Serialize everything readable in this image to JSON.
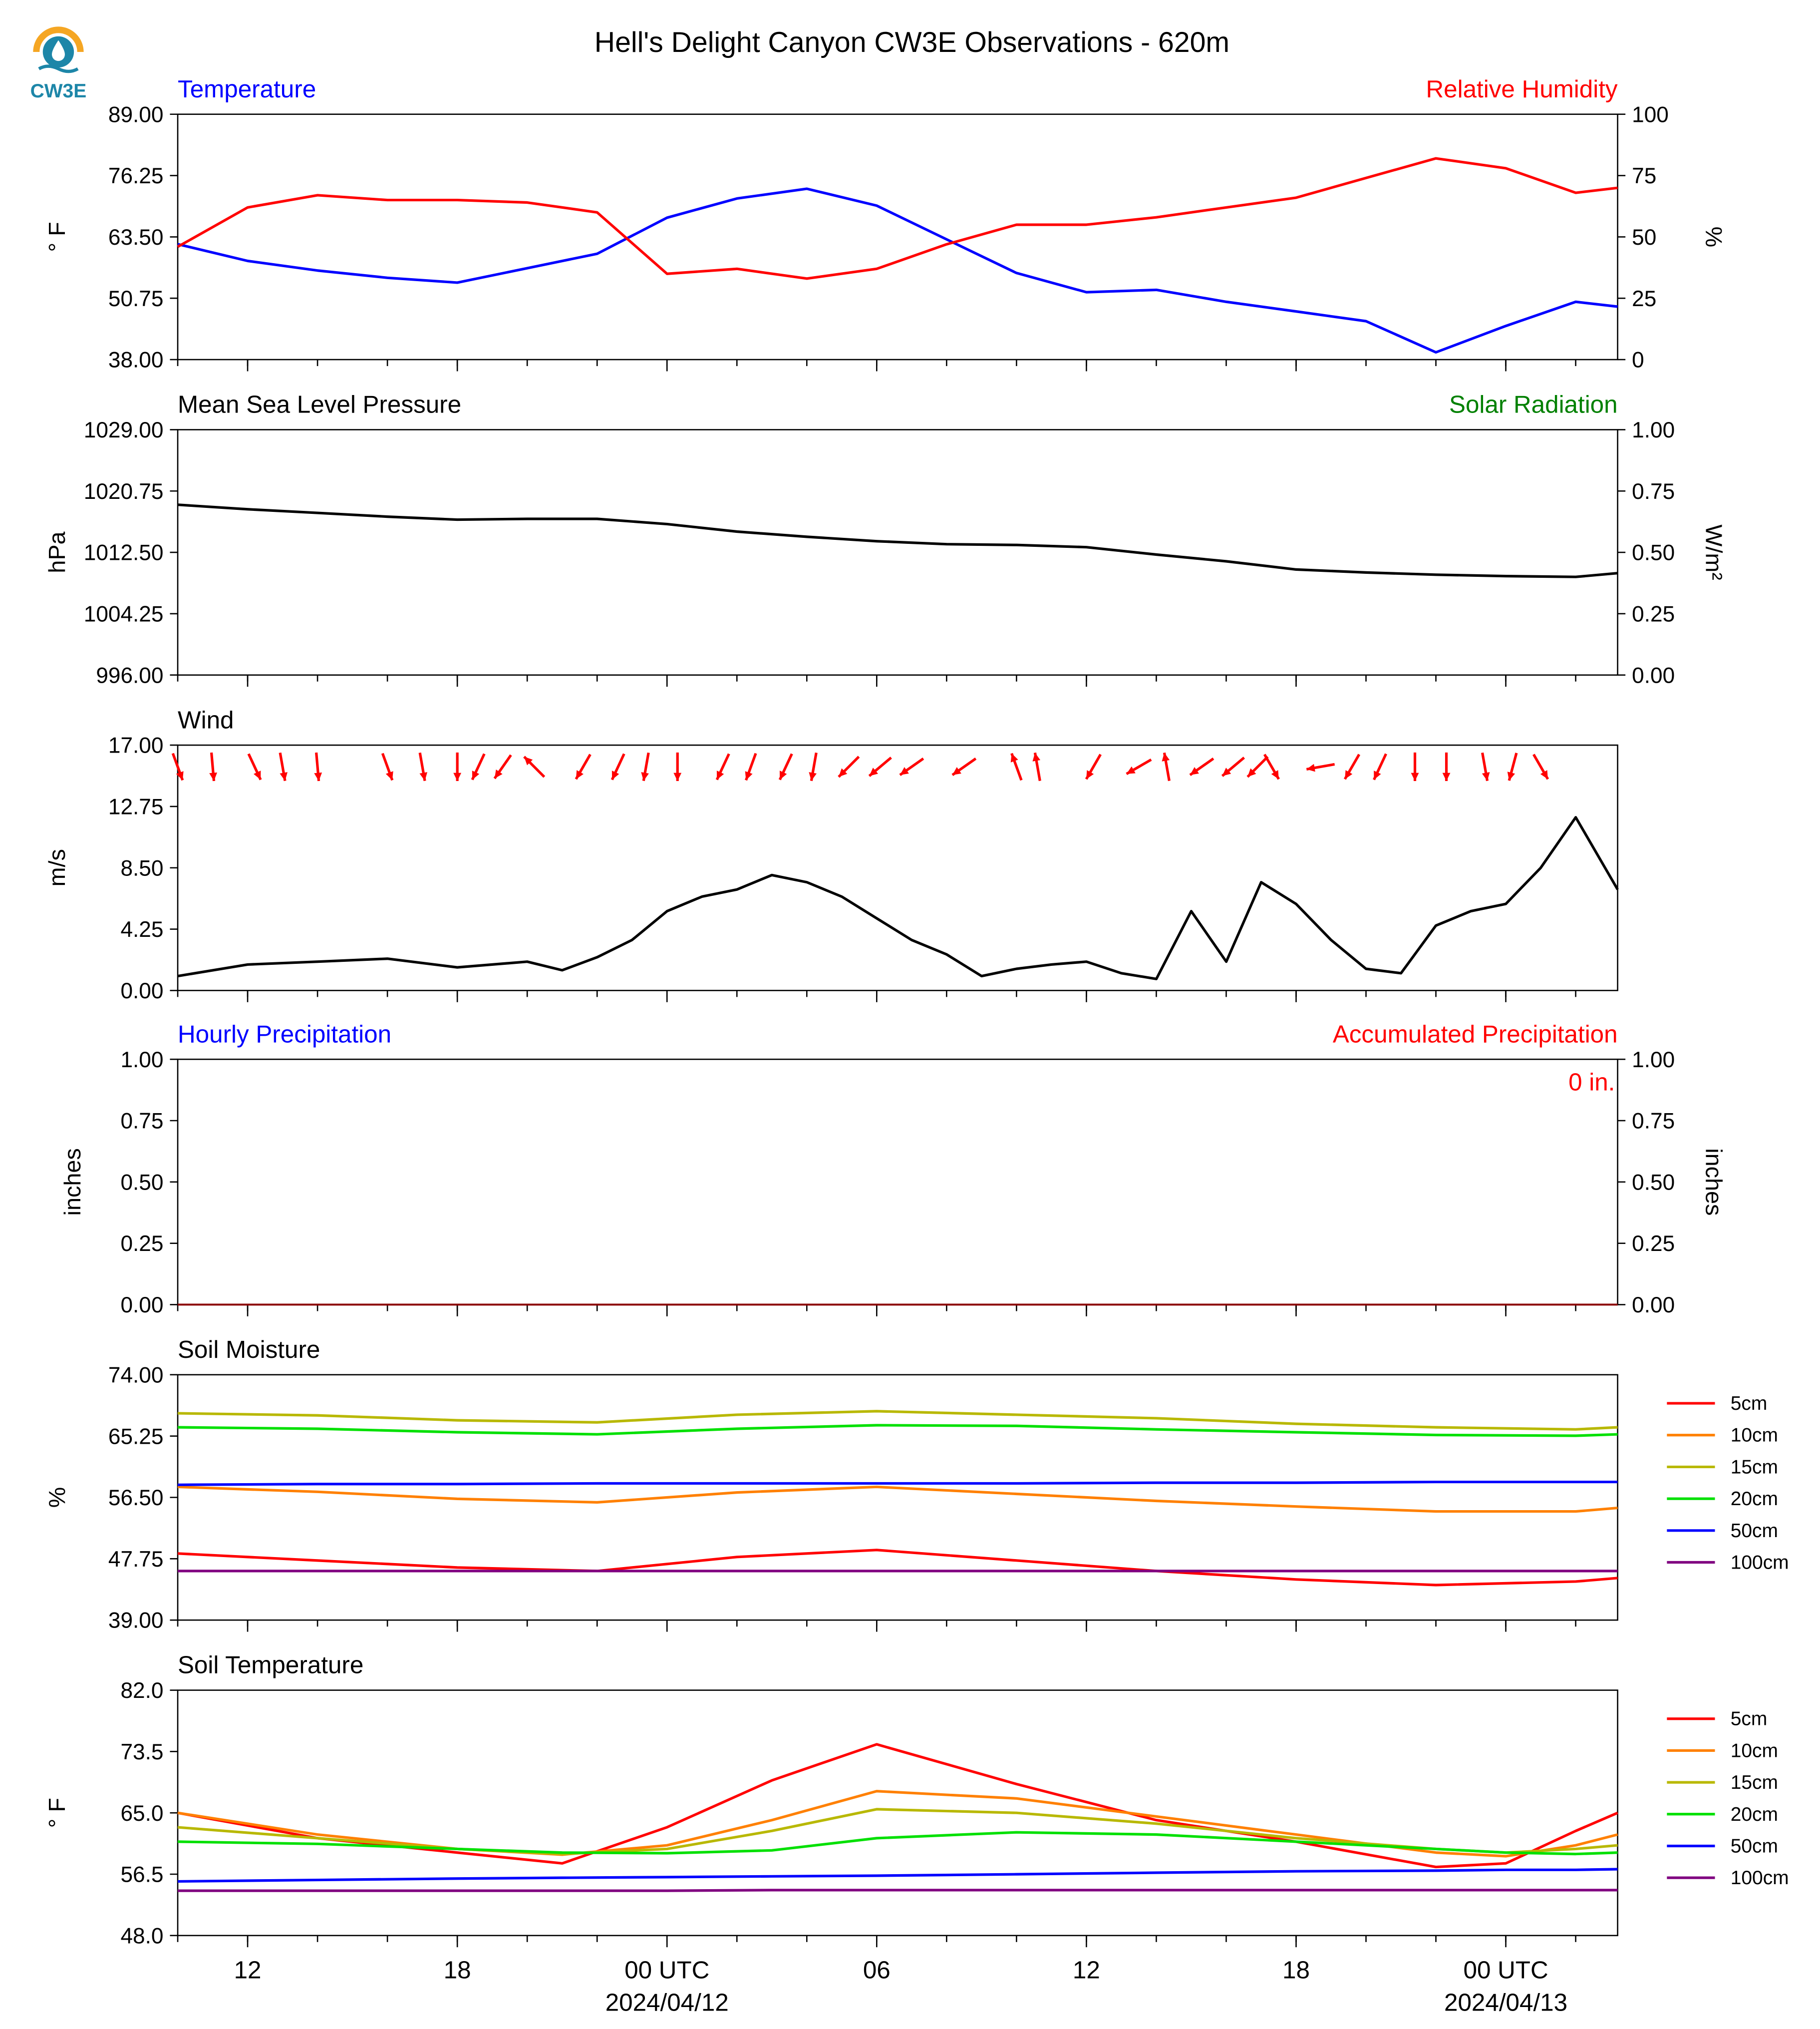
{
  "title": "Hell's Delight Canyon CW3E Observations - 620m",
  "logo": {
    "text": "CW3E",
    "icon": "water-drop-sun-icon",
    "color": "#1d86a8",
    "sun_color": "#f5a623"
  },
  "time_axis": {
    "ticks": [
      {
        "label": "12"
      },
      {
        "label": "18"
      },
      {
        "label": "00 UTC",
        "date": "2024/04/12"
      },
      {
        "label": "06"
      },
      {
        "label": "12"
      },
      {
        "label": "18"
      },
      {
        "label": "00 UTC",
        "date": "2024/04/13"
      }
    ]
  },
  "chart_data": [
    {
      "type": "line",
      "title": "",
      "left_title": "Temperature",
      "right_title": "Relative Humidity",
      "left_title_color": "#0000ff",
      "right_title_color": "#ff0000",
      "ylabel": "° F",
      "ylabel2": "%",
      "ylim": [
        38,
        89
      ],
      "ylim2": [
        0,
        100
      ],
      "yticks": [
        "89.00",
        "76.25",
        "63.50",
        "50.75",
        "38.00"
      ],
      "yticks2": [
        "100",
        "75",
        "50",
        "25",
        "0"
      ],
      "x_hours_from_start": [
        0,
        2,
        4,
        6,
        8,
        10,
        12,
        14,
        16,
        18,
        20,
        22,
        24,
        26,
        28,
        30,
        32,
        34,
        36,
        38,
        40,
        41.2
      ],
      "series": [
        {
          "name": "Temperature",
          "color": "#0000ff",
          "axis": "left",
          "values": [
            62,
            58.5,
            56.5,
            55,
            54,
            57,
            60,
            67.5,
            71.5,
            73.5,
            70,
            63,
            56,
            52,
            52.5,
            50,
            48,
            46,
            39.5,
            45,
            50,
            49
          ]
        },
        {
          "name": "Relative Humidity",
          "color": "#ff0000",
          "axis": "right",
          "values": [
            46,
            62,
            67,
            65,
            65,
            64,
            60,
            35,
            37,
            33,
            37,
            47,
            55,
            55,
            58,
            62,
            66,
            74,
            82,
            78,
            68,
            70
          ]
        }
      ]
    },
    {
      "type": "line",
      "title": "",
      "left_title": "Mean Sea Level Pressure",
      "right_title": "Solar Radiation",
      "left_title_color": "#000000",
      "right_title_color": "#008000",
      "ylabel": "hPa",
      "ylabel2": "W/m²",
      "ylim": [
        996,
        1029
      ],
      "ylim2": [
        0,
        1
      ],
      "yticks": [
        "1029.00",
        "1020.75",
        "1012.50",
        "1004.25",
        "996.00"
      ],
      "yticks2": [
        "1.00",
        "0.75",
        "0.50",
        "0.25",
        "0.00"
      ],
      "x_hours_from_start": [
        0,
        2,
        4,
        6,
        8,
        10,
        12,
        14,
        16,
        18,
        20,
        22,
        24,
        26,
        28,
        30,
        32,
        34,
        36,
        38,
        40,
        41.2
      ],
      "series": [
        {
          "name": "Mean Sea Level Pressure",
          "color": "#000000",
          "axis": "left",
          "values": [
            1018.9,
            1018.3,
            1017.8,
            1017.3,
            1016.9,
            1017,
            1017,
            1016.3,
            1015.3,
            1014.6,
            1014,
            1013.6,
            1013.5,
            1013.2,
            1012.2,
            1011.3,
            1010.2,
            1009.8,
            1009.5,
            1009.3,
            1009.2,
            1009.7
          ]
        }
      ]
    },
    {
      "type": "line",
      "title": "",
      "left_title": "Wind",
      "ylabel": "m/s",
      "ylim": [
        0,
        17
      ],
      "yticks": [
        "17.00",
        "12.75",
        "8.50",
        "4.25",
        "0.00"
      ],
      "x_hours_from_start": [
        0,
        2,
        4,
        6,
        8,
        10,
        11,
        12,
        13,
        14,
        15,
        16,
        17,
        18,
        19,
        20,
        21,
        22,
        23,
        24,
        25,
        26,
        27,
        28,
        29,
        30,
        31,
        32,
        33,
        34,
        35,
        36,
        37,
        38,
        39,
        40,
        41.2
      ],
      "series": [
        {
          "name": "Wind speed",
          "color": "#000000",
          "axis": "left",
          "values": [
            1,
            1.8,
            2,
            2.2,
            1.6,
            2,
            1.4,
            2.3,
            3.5,
            5.5,
            6.5,
            7,
            8,
            7.5,
            6.5,
            5,
            3.5,
            2.5,
            1,
            1.5,
            1.8,
            2,
            1.2,
            0.8,
            5.5,
            2,
            7.5,
            6,
            3.5,
            1.5,
            1.2,
            4.5,
            5.5,
            6,
            8.5,
            12,
            7
          ]
        }
      ],
      "wind_vectors": {
        "color": "#ff0000",
        "x_hours_from_start": [
          0,
          1,
          2.2,
          3,
          4,
          6,
          7,
          8,
          8.6,
          9.3,
          10.2,
          11.6,
          12.6,
          13.4,
          14.3,
          15.6,
          16.4,
          17.4,
          18.2,
          19.2,
          20.1,
          21,
          22.5,
          24,
          24.6,
          26.2,
          27.5,
          28.3,
          29.3,
          30.2,
          30.9,
          31.3,
          32.7,
          33.6,
          34.4,
          35.4,
          36.3,
          37.4,
          38.2,
          39
        ],
        "direction_deg": [
          340,
          355,
          335,
          350,
          355,
          340,
          350,
          0,
          25,
          35,
          135,
          30,
          25,
          10,
          0,
          25,
          20,
          25,
          10,
          45,
          50,
          55,
          55,
          160,
          170,
          30,
          60,
          170,
          55,
          50,
          45,
          330,
          80,
          30,
          25,
          0,
          0,
          350,
          15,
          330
        ],
        "speed_ms": [
          1,
          1,
          1,
          1,
          1,
          1,
          1,
          1,
          1,
          1,
          2,
          4,
          5,
          6,
          6,
          6,
          6,
          6,
          7,
          7,
          7,
          7,
          5,
          2,
          2,
          2,
          2,
          2,
          2,
          2,
          3,
          3,
          3,
          3,
          3,
          4,
          5,
          6,
          8,
          10
        ]
      }
    },
    {
      "type": "bar",
      "title": "",
      "left_title": "Hourly Precipitation",
      "right_title": "Accumulated Precipitation",
      "left_title_color": "#0000ff",
      "right_title_color": "#ff0000",
      "annotation": "0 in.",
      "ylabel": "inches",
      "ylabel2": "inches",
      "ylim": [
        0,
        1
      ],
      "ylim2": [
        0,
        1
      ],
      "yticks": [
        "1.00",
        "0.75",
        "0.50",
        "0.25",
        "0.00"
      ],
      "yticks2": [
        "1.00",
        "0.75",
        "0.50",
        "0.25",
        "0.00"
      ],
      "series": [
        {
          "name": "Accumulated Precipitation",
          "color": "#8b0000",
          "values": [
            0,
            0
          ]
        }
      ]
    },
    {
      "type": "line",
      "title": "",
      "left_title": "Soil Moisture",
      "ylabel": "%",
      "ylim": [
        39,
        74
      ],
      "yticks": [
        "74.00",
        "65.25",
        "56.50",
        "47.75",
        "39.00"
      ],
      "legend": "right",
      "x_hours_from_start": [
        0,
        4,
        8,
        12,
        16,
        20,
        24,
        28,
        32,
        36,
        40,
        41.2
      ],
      "series": [
        {
          "name": "5cm",
          "color": "#ff0000",
          "values": [
            48.5,
            47.5,
            46.5,
            46,
            48,
            49,
            47.5,
            46,
            44.8,
            44,
            44.5,
            45
          ]
        },
        {
          "name": "10cm",
          "color": "#ff8000",
          "values": [
            58,
            57.3,
            56.3,
            55.8,
            57.2,
            58,
            57,
            56,
            55.2,
            54.5,
            54.5,
            55
          ]
        },
        {
          "name": "15cm",
          "color": "#b8b800",
          "values": [
            68.5,
            68.2,
            67.5,
            67.2,
            68.3,
            68.8,
            68.3,
            67.8,
            67,
            66.5,
            66.2,
            66.5
          ]
        },
        {
          "name": "20cm",
          "color": "#00e000",
          "values": [
            66.5,
            66.3,
            65.8,
            65.5,
            66.3,
            66.8,
            66.7,
            66.2,
            65.8,
            65.4,
            65.3,
            65.5
          ]
        },
        {
          "name": "50cm",
          "color": "#0000ff",
          "values": [
            58.3,
            58.4,
            58.4,
            58.5,
            58.5,
            58.5,
            58.5,
            58.6,
            58.6,
            58.7,
            58.7,
            58.7
          ]
        },
        {
          "name": "100cm",
          "color": "#800080",
          "values": [
            46,
            46,
            46,
            46,
            46,
            46,
            46,
            46,
            46,
            46,
            46,
            46
          ]
        }
      ]
    },
    {
      "type": "line",
      "title": "",
      "left_title": "Soil Temperature",
      "ylabel": "° F",
      "ylim": [
        48,
        82
      ],
      "yticks": [
        "82.0",
        "73.5",
        "65.0",
        "56.5",
        "48.0"
      ],
      "legend": "right",
      "x_hours_from_start": [
        0,
        4,
        8,
        11,
        14,
        17,
        20,
        24,
        28,
        32,
        36,
        38,
        40,
        41.2
      ],
      "series": [
        {
          "name": "5cm",
          "color": "#ff0000",
          "values": [
            65,
            61.5,
            59.5,
            58,
            63,
            69.5,
            74.5,
            69,
            64,
            61,
            57.5,
            58,
            62.5,
            65
          ]
        },
        {
          "name": "10cm",
          "color": "#ff8000",
          "values": [
            65,
            62,
            60,
            59.2,
            60.5,
            64,
            68,
            67,
            64.5,
            62,
            59.5,
            59,
            60.5,
            62
          ]
        },
        {
          "name": "15cm",
          "color": "#b8b800",
          "values": [
            63,
            61.5,
            60,
            59.3,
            60,
            62.5,
            65.5,
            65,
            63.5,
            61.5,
            60,
            59.5,
            60,
            60.5
          ]
        },
        {
          "name": "20cm",
          "color": "#00e000",
          "values": [
            61,
            60.7,
            60,
            59.5,
            59.4,
            59.8,
            61.5,
            62.3,
            62,
            61,
            60,
            59.5,
            59.3,
            59.5
          ]
        },
        {
          "name": "50cm",
          "color": "#0000ff",
          "values": [
            55.5,
            55.7,
            55.9,
            56,
            56.1,
            56.2,
            56.3,
            56.5,
            56.7,
            56.9,
            57,
            57.1,
            57.1,
            57.2
          ]
        },
        {
          "name": "100cm",
          "color": "#800080",
          "values": [
            54.2,
            54.2,
            54.2,
            54.2,
            54.2,
            54.3,
            54.3,
            54.3,
            54.3,
            54.3,
            54.3,
            54.3,
            54.3,
            54.3
          ]
        }
      ]
    }
  ]
}
